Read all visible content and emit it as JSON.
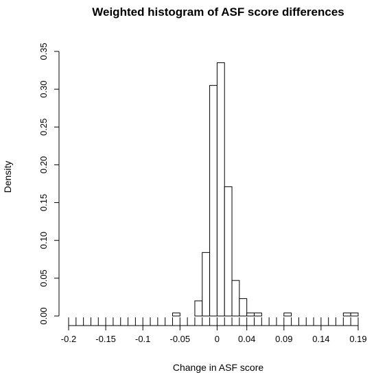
{
  "chart_data": {
    "type": "bar",
    "title": "Weighted histogram of ASF score differences",
    "xlabel": "Change in ASF score",
    "ylabel": "Density",
    "bin_width": 0.01,
    "bins": [
      {
        "start": -0.2,
        "end": -0.19,
        "density": 0.0
      },
      {
        "start": -0.19,
        "end": -0.18,
        "density": 0.0
      },
      {
        "start": -0.18,
        "end": -0.17,
        "density": 0.0
      },
      {
        "start": -0.17,
        "end": -0.16,
        "density": 0.0
      },
      {
        "start": -0.16,
        "end": -0.15,
        "density": 0.0
      },
      {
        "start": -0.15,
        "end": -0.14,
        "density": 0.0
      },
      {
        "start": -0.14,
        "end": -0.13,
        "density": 0.0
      },
      {
        "start": -0.13,
        "end": -0.12,
        "density": 0.0
      },
      {
        "start": -0.12,
        "end": -0.11,
        "density": 0.0
      },
      {
        "start": -0.11,
        "end": -0.1,
        "density": 0.0
      },
      {
        "start": -0.1,
        "end": -0.09,
        "density": 0.0
      },
      {
        "start": -0.09,
        "end": -0.08,
        "density": 0.0
      },
      {
        "start": -0.08,
        "end": -0.07,
        "density": 0.0
      },
      {
        "start": -0.07,
        "end": -0.06,
        "density": 0.0
      },
      {
        "start": -0.06,
        "end": -0.05,
        "density": 0.004
      },
      {
        "start": -0.05,
        "end": -0.04,
        "density": 0.0
      },
      {
        "start": -0.04,
        "end": -0.03,
        "density": 0.0
      },
      {
        "start": -0.03,
        "end": -0.02,
        "density": 0.02
      },
      {
        "start": -0.02,
        "end": -0.01,
        "density": 0.084
      },
      {
        "start": -0.01,
        "end": 0.0,
        "density": 0.305
      },
      {
        "start": 0.0,
        "end": 0.01,
        "density": 0.335
      },
      {
        "start": 0.01,
        "end": 0.02,
        "density": 0.171
      },
      {
        "start": 0.02,
        "end": 0.03,
        "density": 0.047
      },
      {
        "start": 0.03,
        "end": 0.04,
        "density": 0.023
      },
      {
        "start": 0.04,
        "end": 0.05,
        "density": 0.004
      },
      {
        "start": 0.05,
        "end": 0.06,
        "density": 0.004
      },
      {
        "start": 0.06,
        "end": 0.07,
        "density": 0.0
      },
      {
        "start": 0.07,
        "end": 0.08,
        "density": 0.0
      },
      {
        "start": 0.08,
        "end": 0.09,
        "density": 0.0
      },
      {
        "start": 0.09,
        "end": 0.1,
        "density": 0.004
      },
      {
        "start": 0.1,
        "end": 0.11,
        "density": 0.0
      },
      {
        "start": 0.11,
        "end": 0.12,
        "density": 0.0
      },
      {
        "start": 0.12,
        "end": 0.13,
        "density": 0.0
      },
      {
        "start": 0.13,
        "end": 0.14,
        "density": 0.0
      },
      {
        "start": 0.14,
        "end": 0.15,
        "density": 0.0
      },
      {
        "start": 0.15,
        "end": 0.16,
        "density": 0.0
      },
      {
        "start": 0.16,
        "end": 0.17,
        "density": 0.0
      },
      {
        "start": 0.17,
        "end": 0.18,
        "density": 0.004
      },
      {
        "start": 0.18,
        "end": 0.19,
        "density": 0.004
      }
    ],
    "xlim": [
      -0.2,
      0.19
    ],
    "ylim": [
      0,
      0.35
    ],
    "x_ticks": [
      -0.2,
      -0.15,
      -0.1,
      -0.05,
      0,
      0.04,
      0.09,
      0.14,
      0.19
    ],
    "x_tick_labels": [
      "-0.2",
      "-0.15",
      "-0.1",
      "-0.05",
      "0",
      "0.04",
      "0.09",
      "0.14",
      "0.19"
    ],
    "y_ticks": [
      0,
      0.05,
      0.1,
      0.15,
      0.2,
      0.25,
      0.3,
      0.35
    ],
    "y_tick_labels": [
      "0.00",
      "0.05",
      "0.10",
      "0.15",
      "0.20",
      "0.25",
      "0.30",
      "0.35"
    ],
    "grid": false,
    "bar_fill": "#ffffff",
    "bar_stroke": "#000000"
  }
}
